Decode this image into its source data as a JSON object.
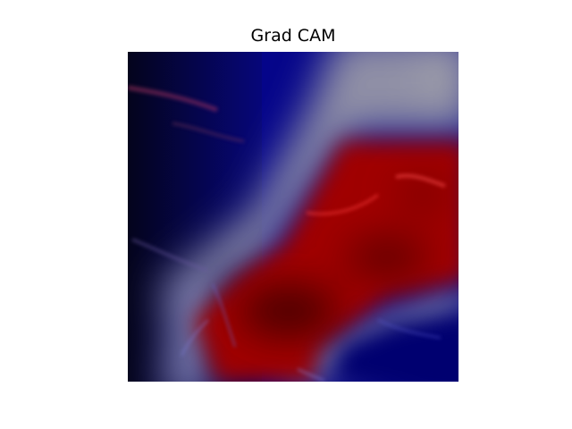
{
  "figure": {
    "title": "Grad CAM"
  },
  "heatmap": {
    "colormap": "seismic",
    "colors": {
      "low": "#00007a",
      "mid": "#9a9aa3",
      "high": "#a80000",
      "background_dark": "#05051a"
    }
  }
}
